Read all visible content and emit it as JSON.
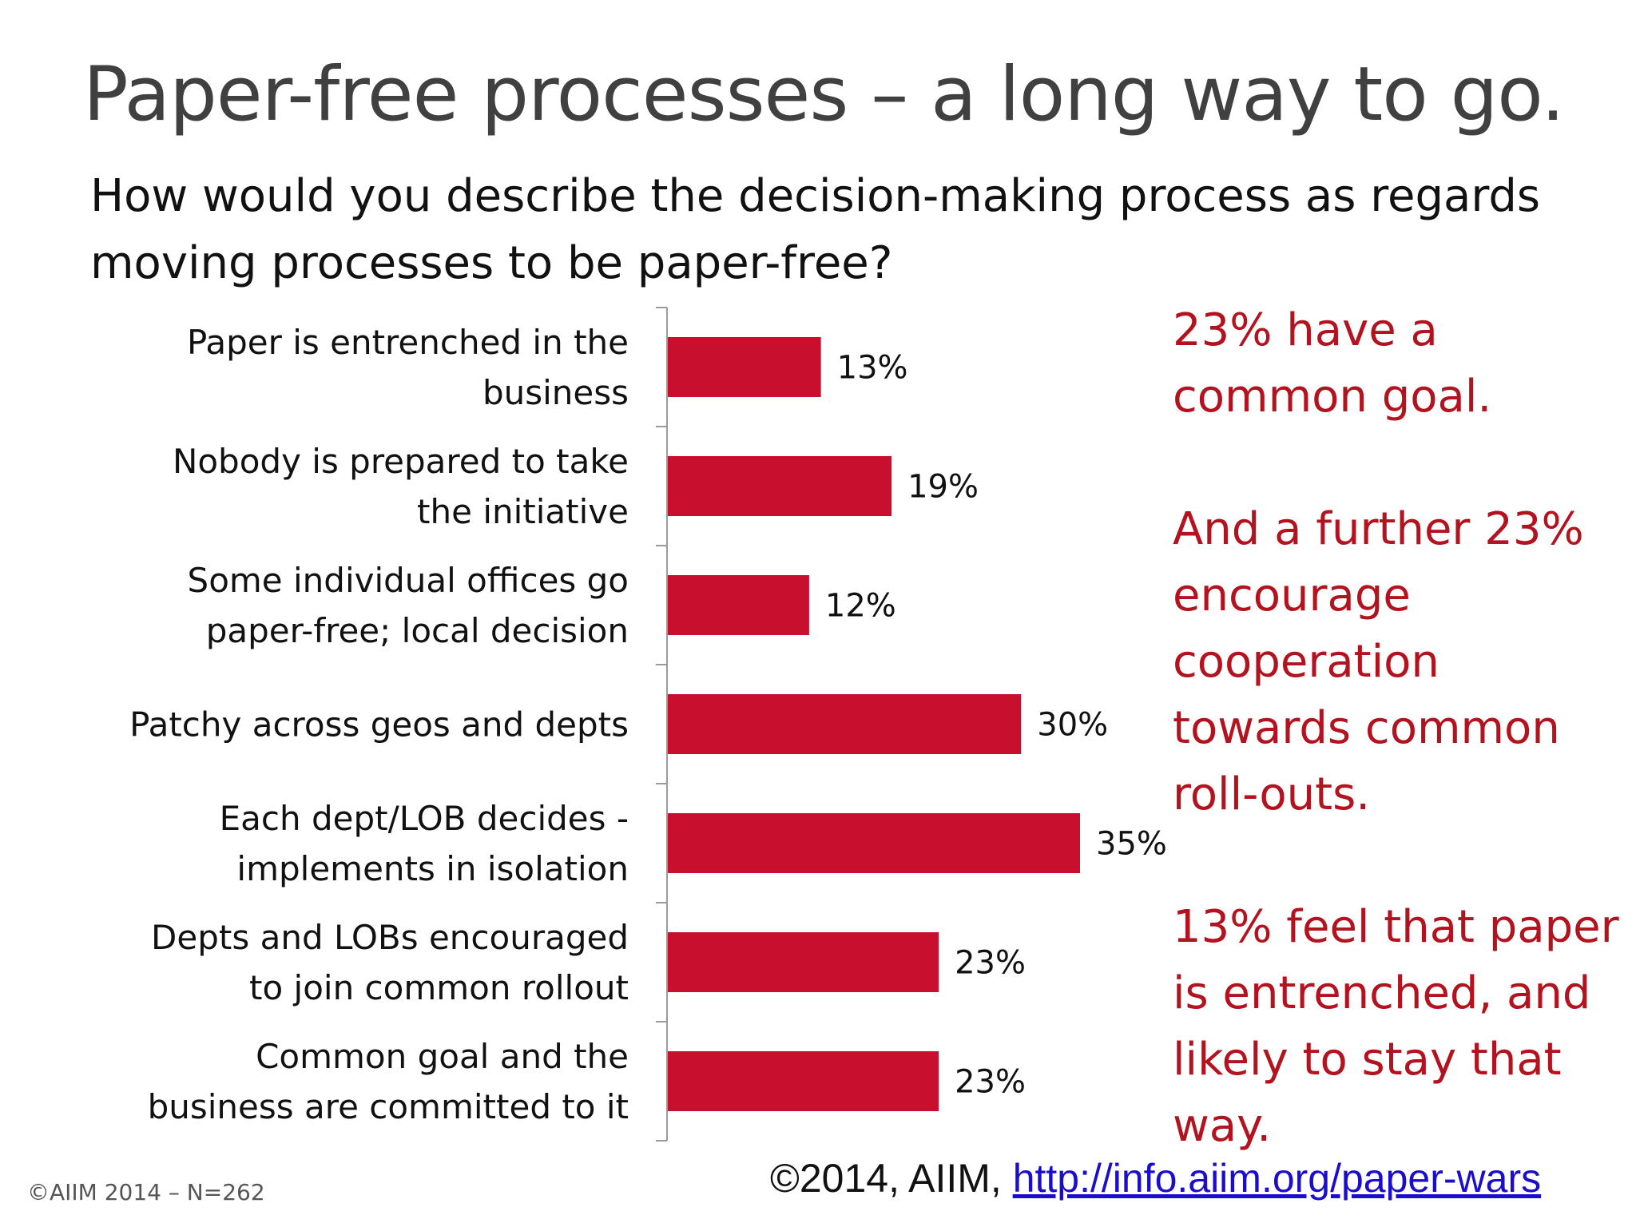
{
  "slide": {
    "title": "Paper-free processes – a long way to go.",
    "question_lines": [
      "How would you describe the decision-making process as regards",
      "moving processes to be paper-free?"
    ],
    "callouts": [
      {
        "lines": [
          "23% have a",
          "common goal."
        ]
      },
      {
        "lines": [
          "And a further 23%",
          "encourage",
          "cooperation",
          "towards common",
          "roll-outs."
        ]
      },
      {
        "lines": [
          "13% feel that paper",
          "is entrenched, and",
          "likely to stay that",
          "way."
        ]
      }
    ],
    "footnote": "©AIIM 2014 – N=262",
    "source_prefix": "©2014, AIIM,",
    "source_link": "http://info.aiim.org/paper-wars"
  },
  "colors": {
    "bar": "#c8102e",
    "callout": "#b3121f",
    "axis": "#9a9a9a"
  },
  "chart_data": {
    "type": "bar",
    "orientation": "horizontal",
    "categories": [
      [
        "Paper is entrenched in the",
        "business"
      ],
      [
        "Nobody is prepared to take",
        "the initiative"
      ],
      [
        "Some individual offices go",
        "paper-free; local decision"
      ],
      [
        "Patchy across geos and depts"
      ],
      [
        "Each dept/LOB decides -",
        "implements in isolation"
      ],
      [
        "Depts and LOBs encouraged",
        "to join common rollout"
      ],
      [
        "Common goal and the",
        "business are committed to it"
      ]
    ],
    "values": [
      13,
      19,
      12,
      30,
      35,
      23,
      23
    ],
    "value_labels": [
      "13%",
      "19%",
      "12%",
      "30%",
      "35%",
      "23%",
      "23%"
    ],
    "unit": "%",
    "xlim": [
      0,
      35
    ],
    "grid": false,
    "legend": "none"
  }
}
